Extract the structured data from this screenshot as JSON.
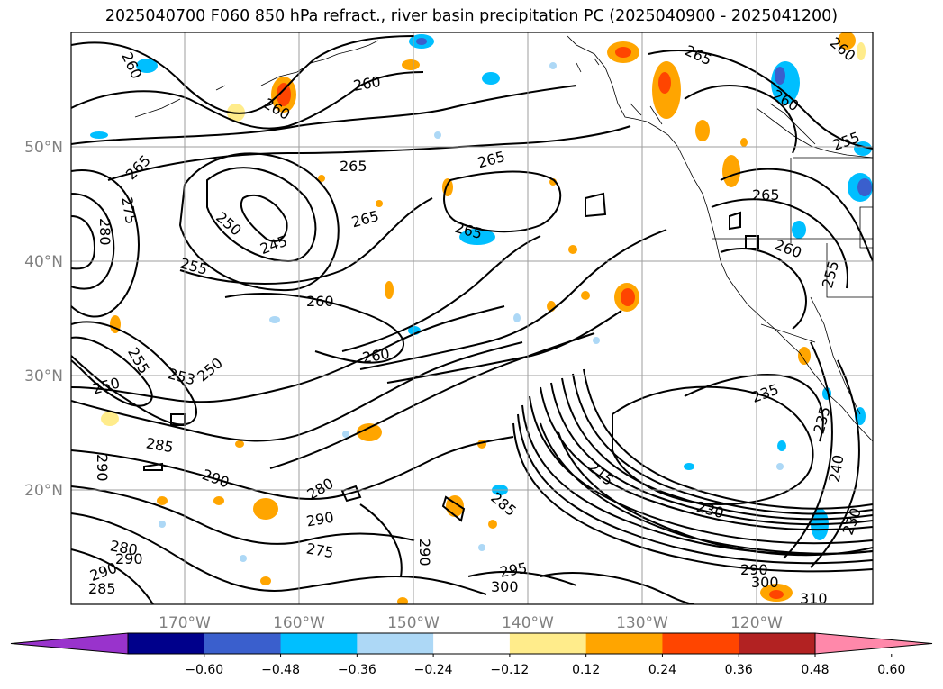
{
  "title": "2025040700 F060 850 hPa refract., river basin precipitation PC (2025040900 - 2025041200)",
  "lat_labels": [
    "50°N",
    "40°N",
    "30°N",
    "20°N"
  ],
  "lon_labels": [
    "170°W",
    "160°W",
    "150°W",
    "140°W",
    "130°W",
    "120°W"
  ],
  "contour_labels": [
    "260",
    "260",
    "260",
    "265",
    "265",
    "265",
    "265",
    "265",
    "250",
    "245",
    "255",
    "260",
    "260",
    "280",
    "275",
    "255",
    "250",
    "250",
    "253",
    "285",
    "290",
    "290",
    "280",
    "290",
    "275",
    "290",
    "280",
    "290",
    "290",
    "285",
    "295",
    "300",
    "285",
    "230",
    "235",
    "235",
    "240",
    "230",
    "255",
    "260",
    "265",
    "310",
    "300",
    "290",
    "260",
    "265",
    "255",
    "260",
    "215"
  ],
  "colorbar": {
    "ticks": [
      "−0.60",
      "−0.48",
      "−0.36",
      "−0.24",
      "−0.12",
      "0.12",
      "0.24",
      "0.36",
      "0.48",
      "0.60"
    ],
    "colors": [
      "#9933cc",
      "#00008b",
      "#3a5fcd",
      "#00bfff",
      "#add8f6",
      "#ffffff",
      "#ffec8b",
      "#ffa500",
      "#ff4500",
      "#b22222",
      "#ff88aa"
    ]
  }
}
